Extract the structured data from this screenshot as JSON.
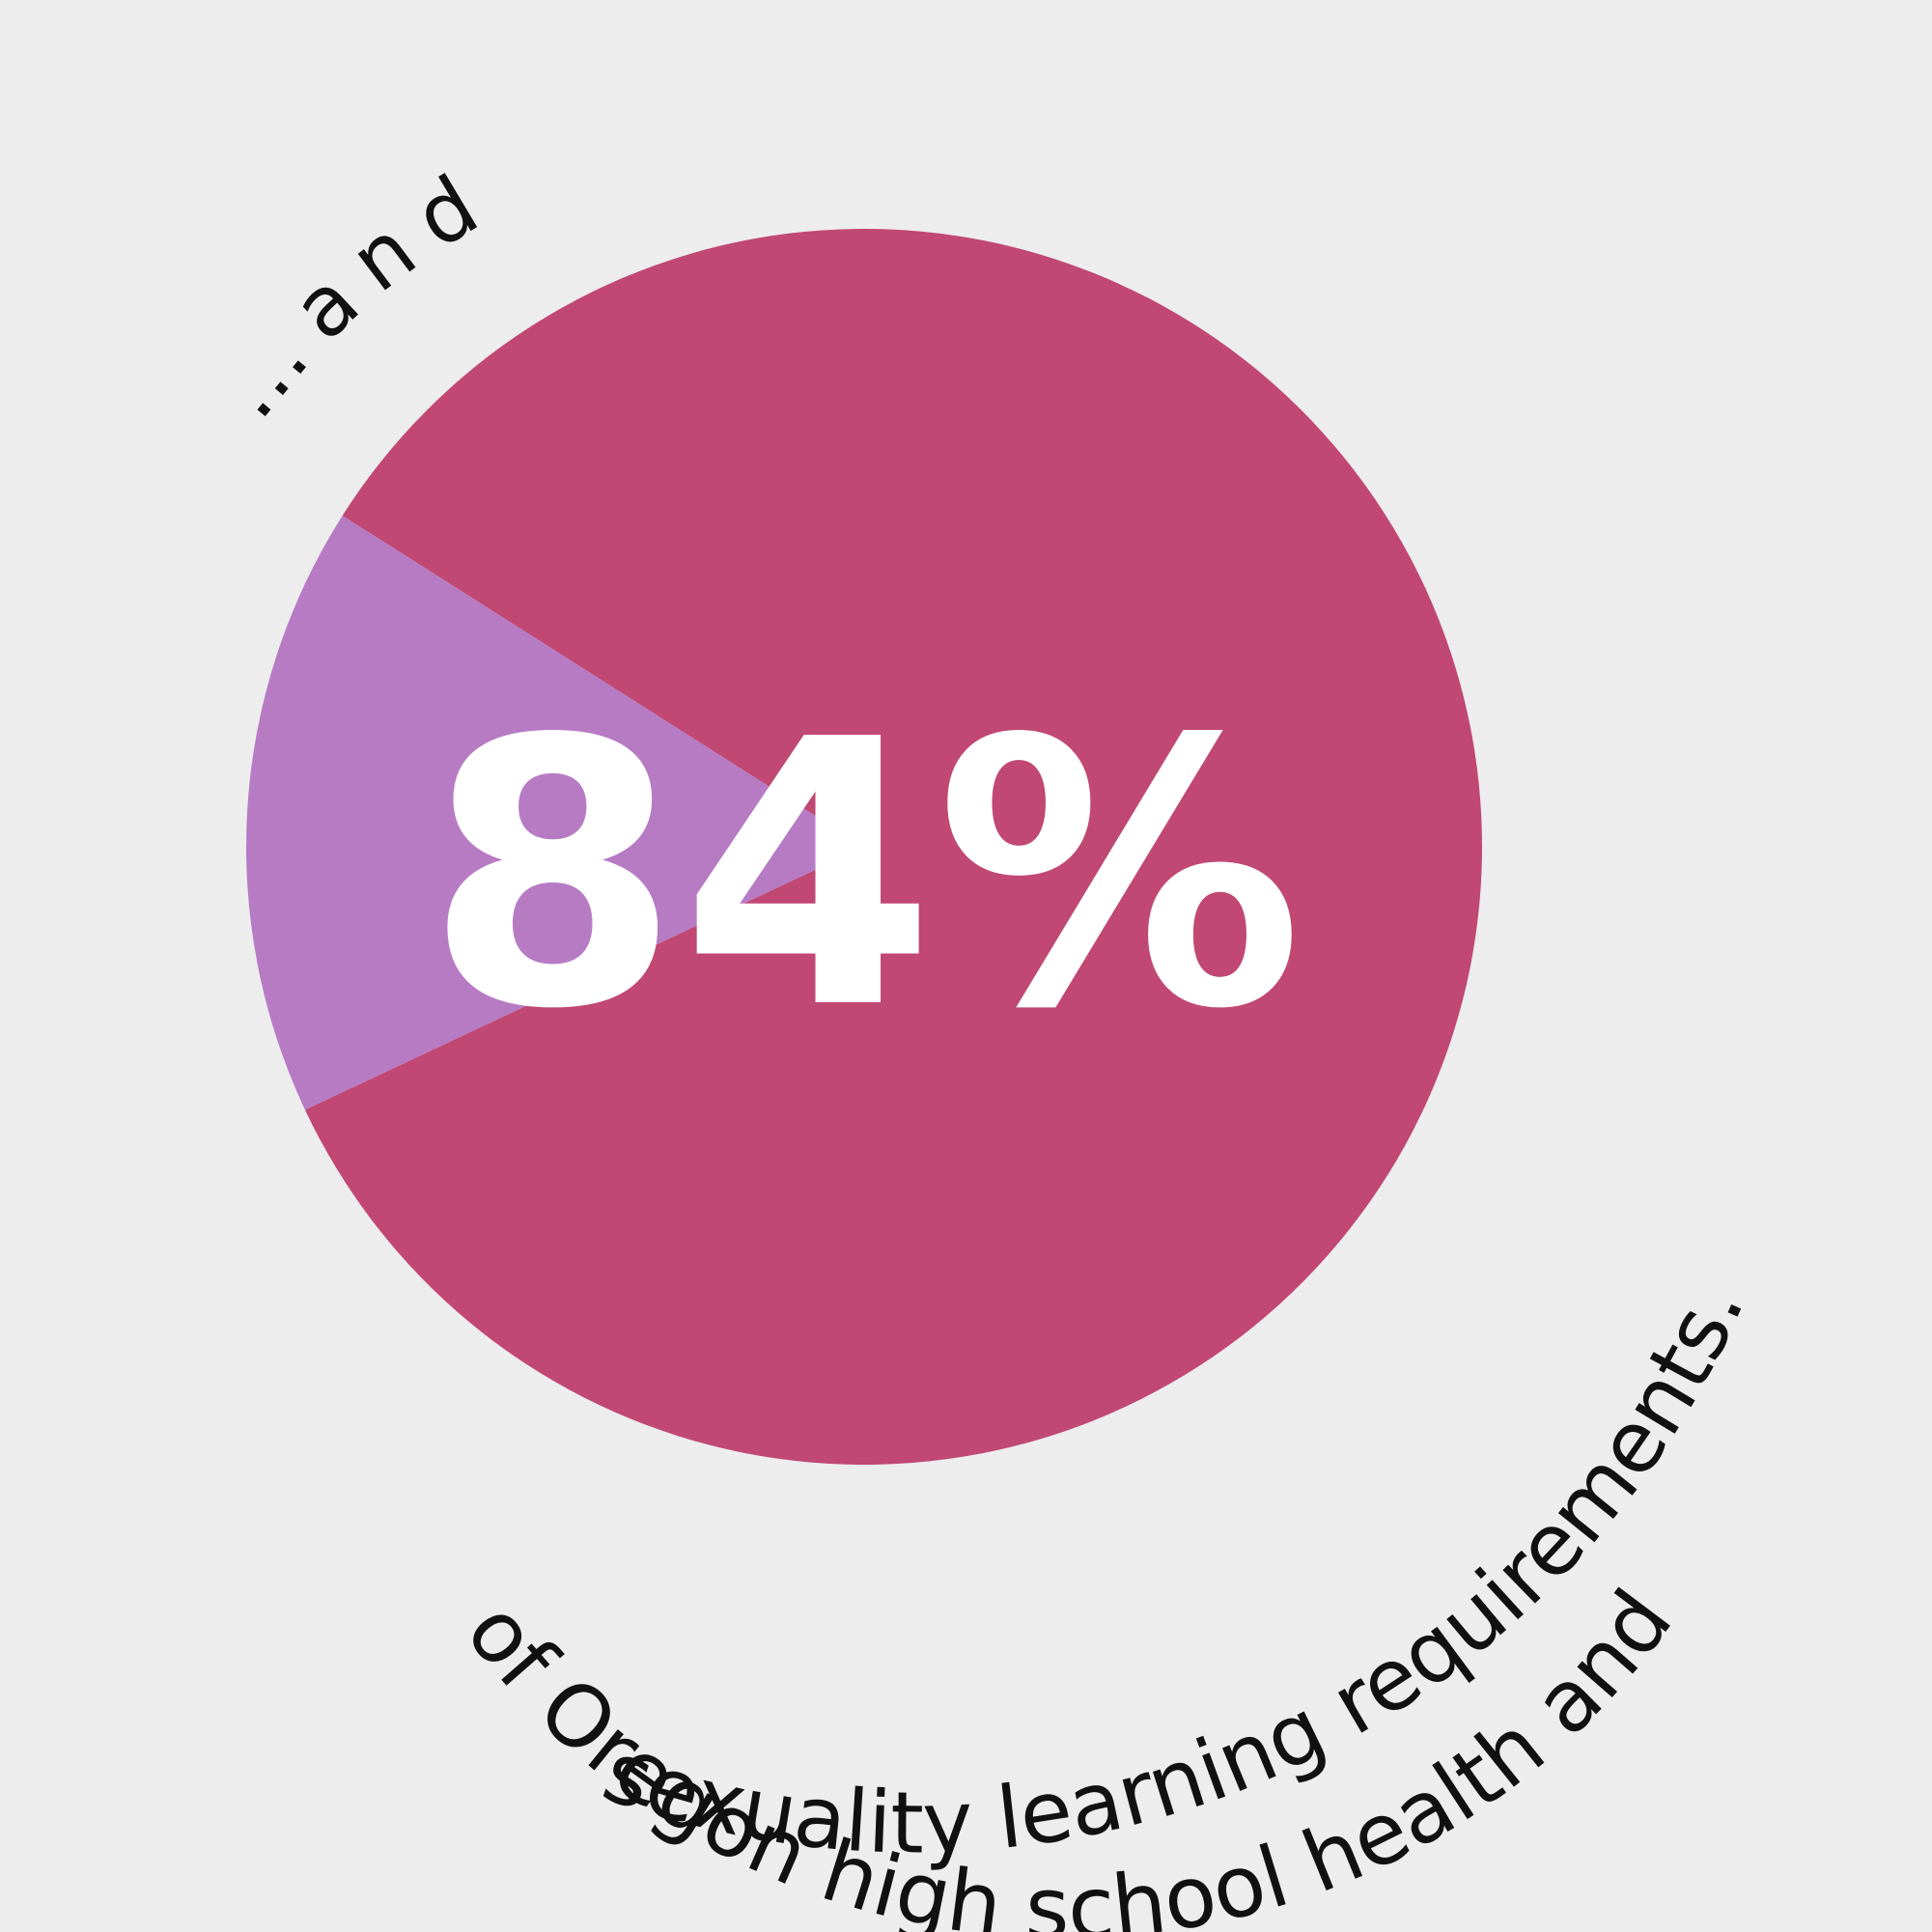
{
  "background_color": "#ededed",
  "intro_text": "…and",
  "headline": {
    "value": "84%"
  },
  "caption": {
    "line1": "of Oregon high school health and",
    "line2": "sexuality learning requirements."
  },
  "chart_data": {
    "type": "pie",
    "slices": [
      {
        "value": 84,
        "color": "#c04873"
      },
      {
        "value": 16,
        "color": "#b77bc4"
      }
    ],
    "start_value": 84,
    "title": "",
    "legend": "none"
  }
}
